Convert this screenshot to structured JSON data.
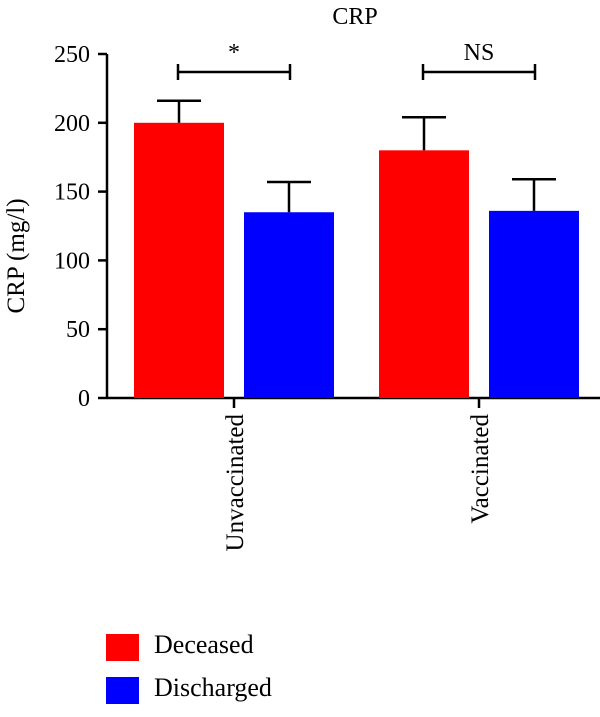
{
  "chart_data": {
    "type": "bar",
    "title": "CRP",
    "ylabel": "CRP (mg/l)",
    "xlabel": "",
    "ylim": [
      0,
      250
    ],
    "yticks": [
      0,
      50,
      100,
      150,
      200,
      250
    ],
    "categories": [
      "Unvaccinated",
      "Vaccinated"
    ],
    "series": [
      {
        "name": "Deceased",
        "color": "#ff0000",
        "values": [
          200,
          180
        ],
        "error": [
          16,
          24
        ]
      },
      {
        "name": "Discharged",
        "color": "#0000ff",
        "values": [
          135,
          136
        ],
        "error": [
          22,
          23
        ]
      }
    ],
    "significance": [
      "*",
      "NS"
    ],
    "grid": false,
    "legend_position": "bottom-left"
  }
}
